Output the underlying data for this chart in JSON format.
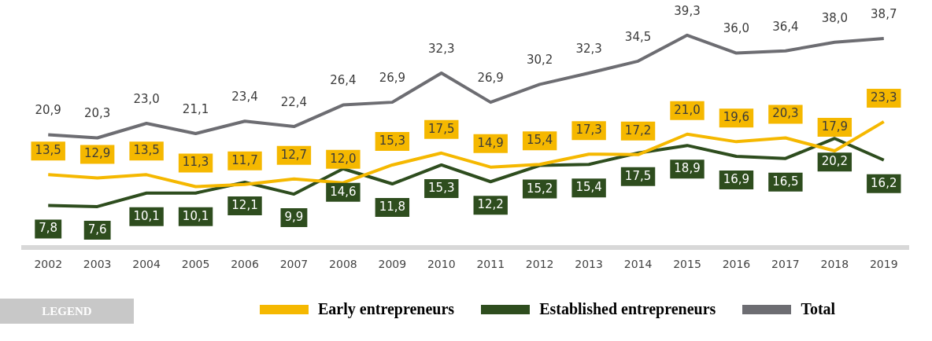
{
  "chart_data": {
    "type": "line",
    "categories": [
      "2002",
      "2003",
      "2004",
      "2005",
      "2006",
      "2007",
      "2008",
      "2009",
      "2010",
      "2011",
      "2012",
      "2013",
      "2014",
      "2015",
      "2016",
      "2017",
      "2018",
      "2019"
    ],
    "series": [
      {
        "name": "Early entrepreneurs",
        "color": "#f5b800",
        "values": [
          13.5,
          12.9,
          13.5,
          11.3,
          11.7,
          12.7,
          12.0,
          15.3,
          17.5,
          14.9,
          15.4,
          17.3,
          17.2,
          21.0,
          19.6,
          20.3,
          17.9,
          23.3
        ],
        "value_labels": [
          "13,5",
          "12,9",
          "13,5",
          "11,3",
          "11,7",
          "12,7",
          "12,0",
          "15,3",
          "17,5",
          "14,9",
          "15,4",
          "17,3",
          "17,2",
          "21,0",
          "19,6",
          "20,3",
          "17,9",
          "23,3"
        ]
      },
      {
        "name": "Established entrepreneurs",
        "color": "#2e4d1e",
        "values": [
          7.8,
          7.6,
          10.1,
          10.1,
          12.1,
          9.9,
          14.6,
          11.8,
          15.3,
          12.2,
          15.2,
          15.4,
          17.5,
          18.9,
          16.9,
          16.5,
          20.2,
          16.2
        ],
        "value_labels": [
          "7,8",
          "7,6",
          "10,1",
          "10,1",
          "12,1",
          "9,9",
          "14,6",
          "11,8",
          "15,3",
          "12,2",
          "15,2",
          "15,4",
          "17,5",
          "18,9",
          "16,9",
          "16,5",
          "20,2",
          "16,2"
        ]
      },
      {
        "name": "Total",
        "color": "#6d6d72",
        "values": [
          20.9,
          20.3,
          23.0,
          21.1,
          23.4,
          22.4,
          26.4,
          26.9,
          32.3,
          26.9,
          30.2,
          32.3,
          34.5,
          39.3,
          36.0,
          36.4,
          38.0,
          38.7
        ],
        "value_labels": [
          "20,9",
          "20,3",
          "23,0",
          "21,1",
          "23,4",
          "22,4",
          "26,4",
          "26,9",
          "32,3",
          "26,9",
          "30,2",
          "32,3",
          "34,5",
          "39,3",
          "36,0",
          "36,4",
          "38,0",
          "38,7"
        ]
      }
    ],
    "legend": "bottom",
    "legend_title": "LEGEND",
    "grid": false,
    "marker": "none",
    "line_style": "solid",
    "tick_labels": "x"
  }
}
